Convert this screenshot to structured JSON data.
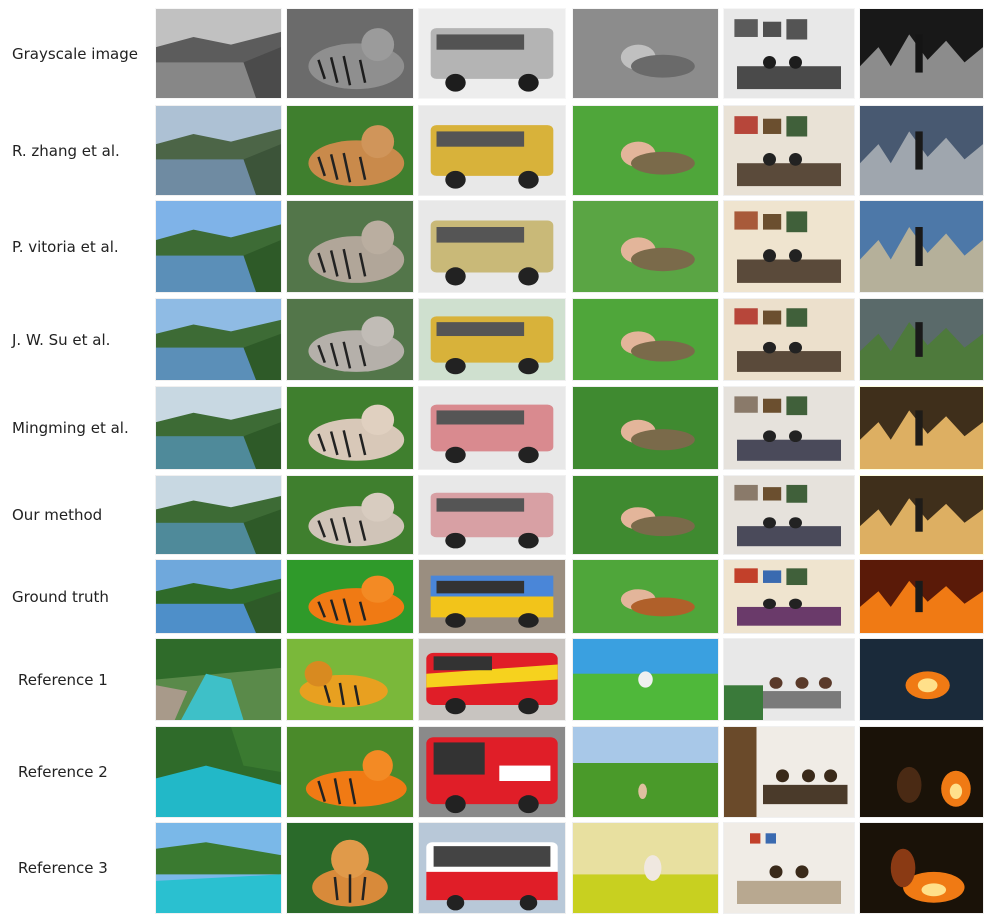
{
  "rows": [
    {
      "label": "Grayscale image"
    },
    {
      "label": "R. zhang et al."
    },
    {
      "label": "P. vitoria et al."
    },
    {
      "label": "J. W. Su et al."
    },
    {
      "label": "Mingming et al."
    },
    {
      "label": "Our method"
    },
    {
      "label": "Ground truth"
    },
    {
      "label": "Reference 1"
    },
    {
      "label": "Reference 2"
    },
    {
      "label": "Reference 3"
    }
  ],
  "columns": [
    "river-landscape",
    "tiger",
    "bus",
    "woman-in-grass",
    "living-room",
    "burning-field"
  ],
  "colors": {
    "sky": "#6fa8dc",
    "forest": "#2f6b2a",
    "tiger": "#d9822b",
    "bus_yellow": "#d8b23a",
    "bus_pink": "#d98a8f",
    "grass": "#4fa63a",
    "fire": "#f07a14"
  }
}
